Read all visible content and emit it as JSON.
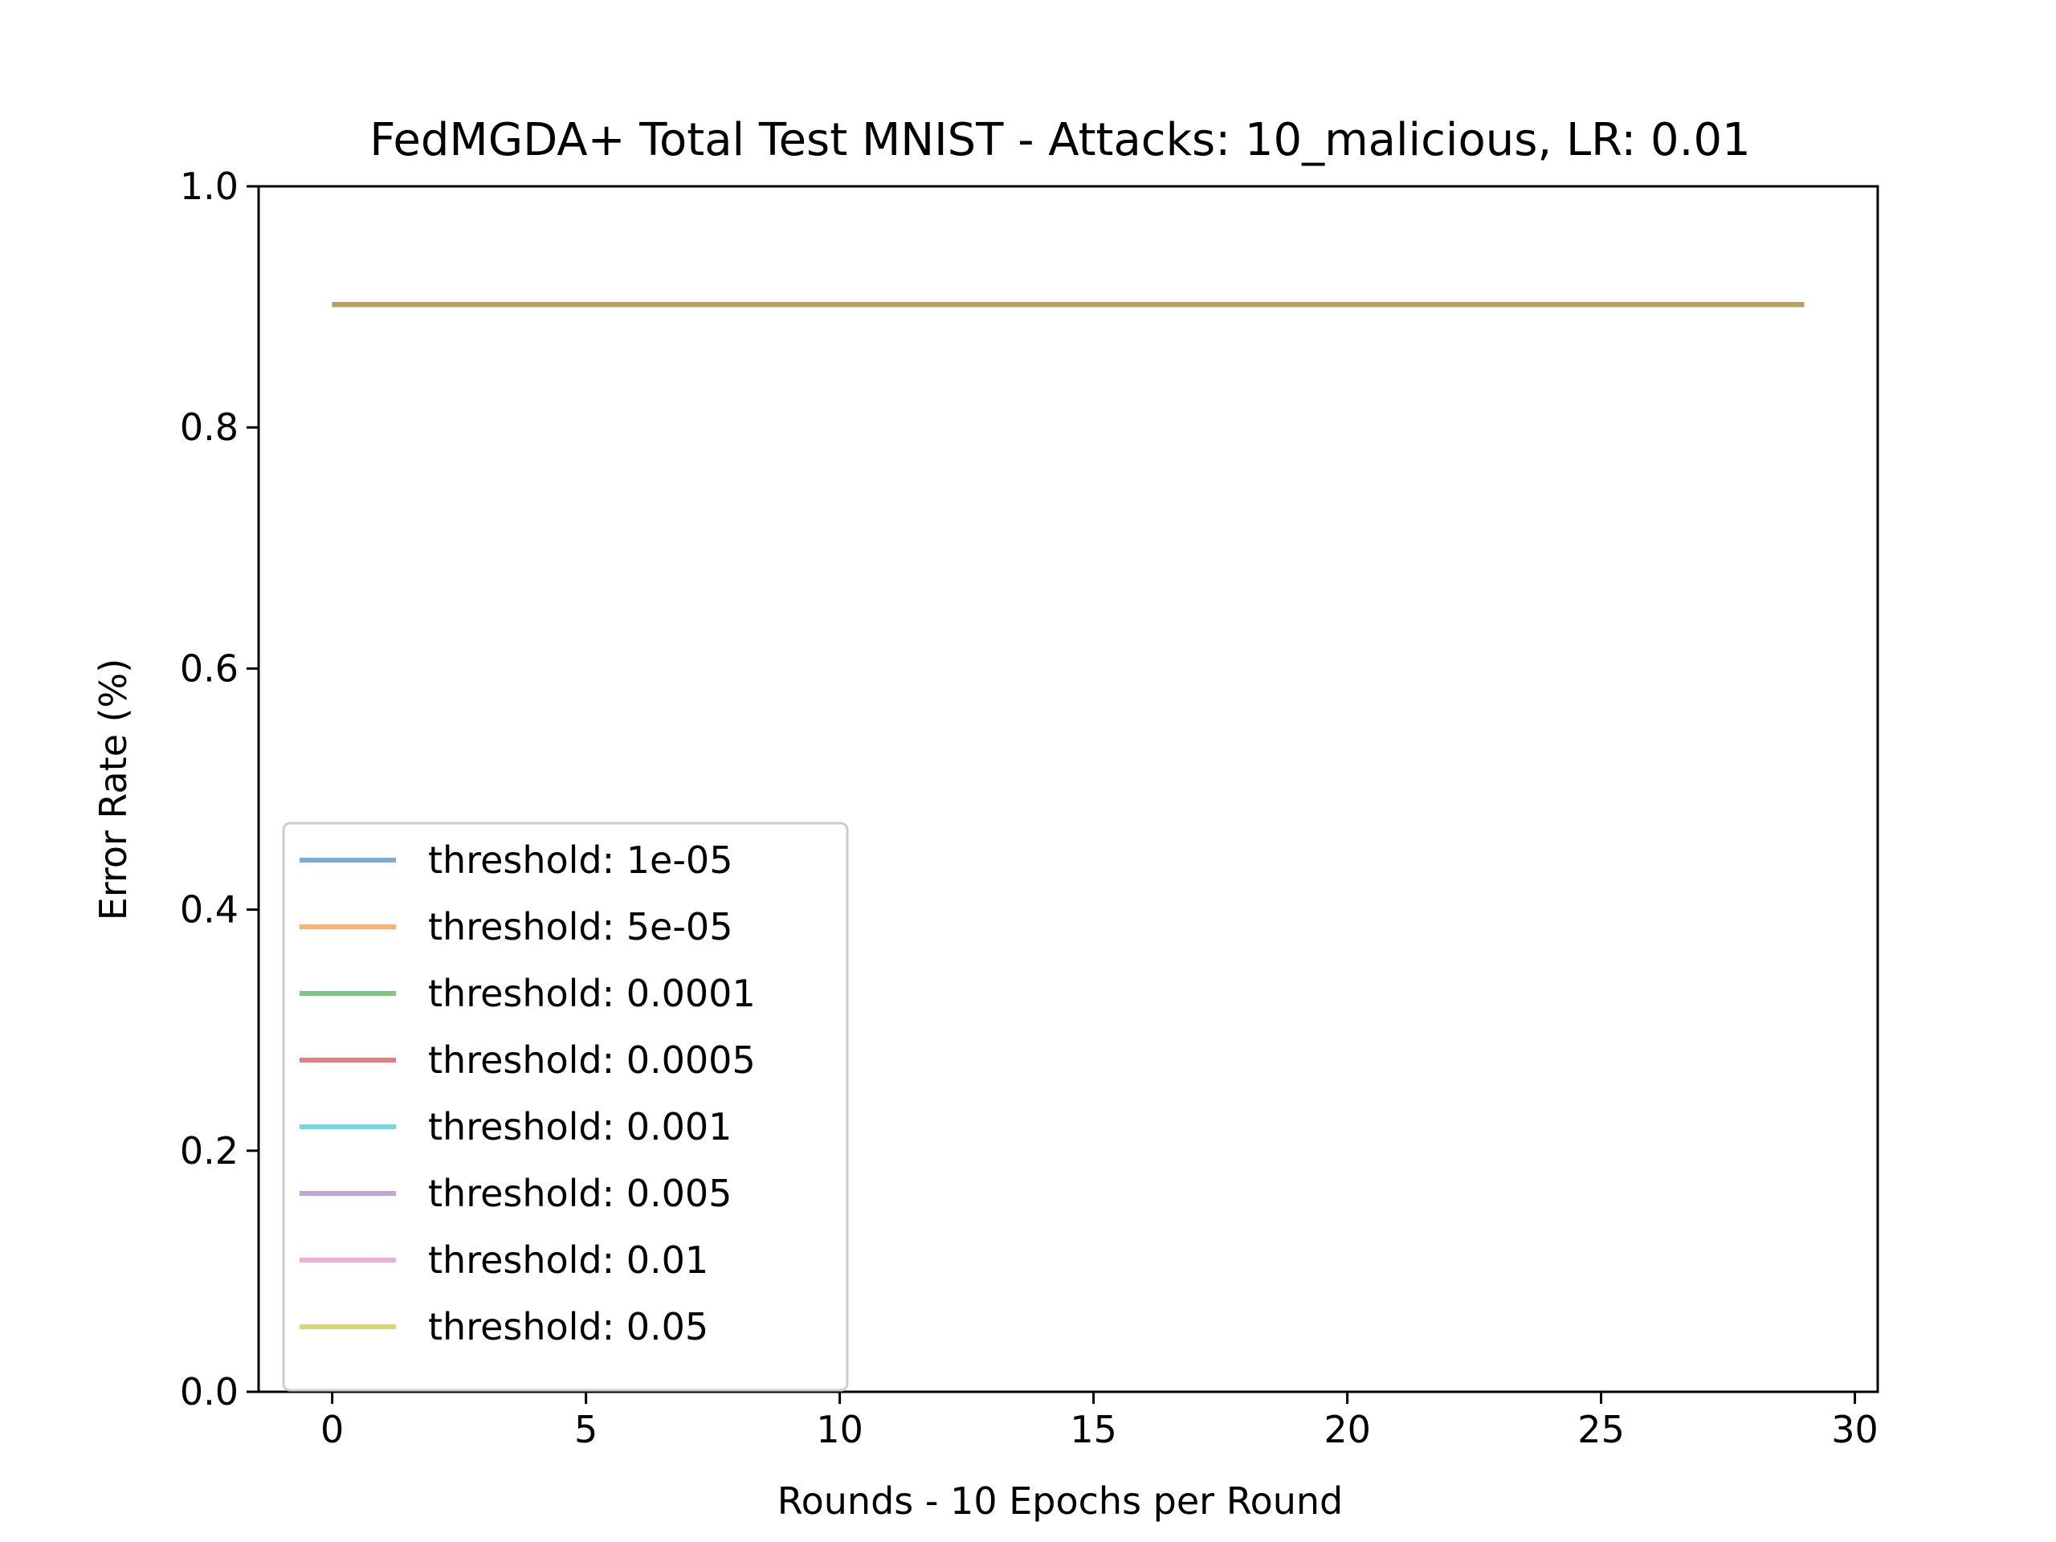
{
  "chart_data": {
    "type": "line",
    "title": "FedMGDA+ Total Test MNIST - Attacks: 10_malicious, LR: 0.01",
    "xlabel": "Rounds - 10 Epochs per Round",
    "ylabel": "Error Rate (%)",
    "xlim": [
      -1.45,
      30.45
    ],
    "ylim": [
      0.0,
      1.0
    ],
    "xticks": [
      0,
      5,
      10,
      15,
      20,
      25,
      30
    ],
    "yticks": [
      0.0,
      0.2,
      0.4,
      0.6,
      0.8,
      1.0
    ],
    "xtick_labels": [
      "0",
      "5",
      "10",
      "15",
      "20",
      "25",
      "30"
    ],
    "ytick_labels": [
      "0.0",
      "0.2",
      "0.4",
      "0.6",
      "0.8",
      "1.0"
    ],
    "grid": false,
    "legend_position": "lower-left",
    "x": [
      0,
      1,
      2,
      3,
      4,
      5,
      6,
      7,
      8,
      9,
      10,
      11,
      12,
      13,
      14,
      15,
      16,
      17,
      18,
      19,
      20,
      21,
      22,
      23,
      24,
      25,
      26,
      27,
      28,
      29
    ],
    "series": [
      {
        "name": "threshold: 1e-05",
        "color": "#1f77b4",
        "values": [
          0.902,
          0.902,
          0.902,
          0.902,
          0.902,
          0.902,
          0.902,
          0.902,
          0.902,
          0.902,
          0.902,
          0.902,
          0.902,
          0.902,
          0.902,
          0.902,
          0.902,
          0.902,
          0.902,
          0.902,
          0.902,
          0.902,
          0.902,
          0.902,
          0.902,
          0.902,
          0.902,
          0.902,
          0.902,
          0.902
        ]
      },
      {
        "name": "threshold: 5e-05",
        "color": "#ff7f0e",
        "values": [
          0.902,
          0.902,
          0.902,
          0.902,
          0.902,
          0.902,
          0.902,
          0.902,
          0.902,
          0.902,
          0.902,
          0.902,
          0.902,
          0.902,
          0.902,
          0.902,
          0.902,
          0.902,
          0.902,
          0.902,
          0.902,
          0.902,
          0.902,
          0.902,
          0.902,
          0.902,
          0.902,
          0.902,
          0.902,
          0.902
        ]
      },
      {
        "name": "threshold: 0.0001",
        "color": "#2ca02c",
        "values": [
          0.902,
          0.902,
          0.902,
          0.902,
          0.902,
          0.902,
          0.902,
          0.902,
          0.902,
          0.902,
          0.902,
          0.902,
          0.902,
          0.902,
          0.902,
          0.902,
          0.902,
          0.902,
          0.902,
          0.902,
          0.902,
          0.902,
          0.902,
          0.902,
          0.902,
          0.902,
          0.902,
          0.902,
          0.902,
          0.902
        ]
      },
      {
        "name": "threshold: 0.0005",
        "color": "#d62728",
        "values": [
          0.902,
          0.902,
          0.902,
          0.902,
          0.902,
          0.902,
          0.902,
          0.902,
          0.902,
          0.902,
          0.902,
          0.902,
          0.902,
          0.902,
          0.902,
          0.902,
          0.902,
          0.902,
          0.902,
          0.902,
          0.902,
          0.902,
          0.902,
          0.902,
          0.902,
          0.902,
          0.902,
          0.902,
          0.902,
          0.902
        ]
      },
      {
        "name": "threshold: 0.001",
        "color": "#17becf",
        "values": [
          0.902,
          0.902,
          0.902,
          0.902,
          0.902,
          0.902,
          0.902,
          0.902,
          0.902,
          0.902,
          0.902,
          0.902,
          0.902,
          0.902,
          0.902,
          0.902,
          0.902,
          0.902,
          0.902,
          0.902,
          0.902,
          0.902,
          0.902,
          0.902,
          0.902,
          0.902,
          0.902,
          0.902,
          0.902,
          0.902
        ]
      },
      {
        "name": "threshold: 0.005",
        "color": "#9467bd",
        "values": [
          0.902,
          0.902,
          0.902,
          0.902,
          0.902,
          0.902,
          0.902,
          0.902,
          0.902,
          0.902,
          0.902,
          0.902,
          0.902,
          0.902,
          0.902,
          0.902,
          0.902,
          0.902,
          0.902,
          0.902,
          0.902,
          0.902,
          0.902,
          0.902,
          0.902,
          0.902,
          0.902,
          0.902,
          0.902,
          0.902
        ]
      },
      {
        "name": "threshold: 0.01",
        "color": "#e377c2",
        "values": [
          0.902,
          0.902,
          0.902,
          0.902,
          0.902,
          0.902,
          0.902,
          0.902,
          0.902,
          0.902,
          0.902,
          0.902,
          0.902,
          0.902,
          0.902,
          0.902,
          0.902,
          0.902,
          0.902,
          0.902,
          0.902,
          0.902,
          0.902,
          0.902,
          0.902,
          0.902,
          0.902,
          0.902,
          0.902,
          0.902
        ]
      },
      {
        "name": "threshold: 0.05",
        "color": "#bcbd22",
        "values": [
          0.902,
          0.902,
          0.902,
          0.902,
          0.902,
          0.902,
          0.902,
          0.902,
          0.902,
          0.902,
          0.902,
          0.902,
          0.902,
          0.902,
          0.902,
          0.902,
          0.902,
          0.902,
          0.902,
          0.902,
          0.902,
          0.902,
          0.902,
          0.902,
          0.902,
          0.902,
          0.902,
          0.902,
          0.902,
          0.902
        ]
      }
    ],
    "series_opacity": 0.6
  }
}
